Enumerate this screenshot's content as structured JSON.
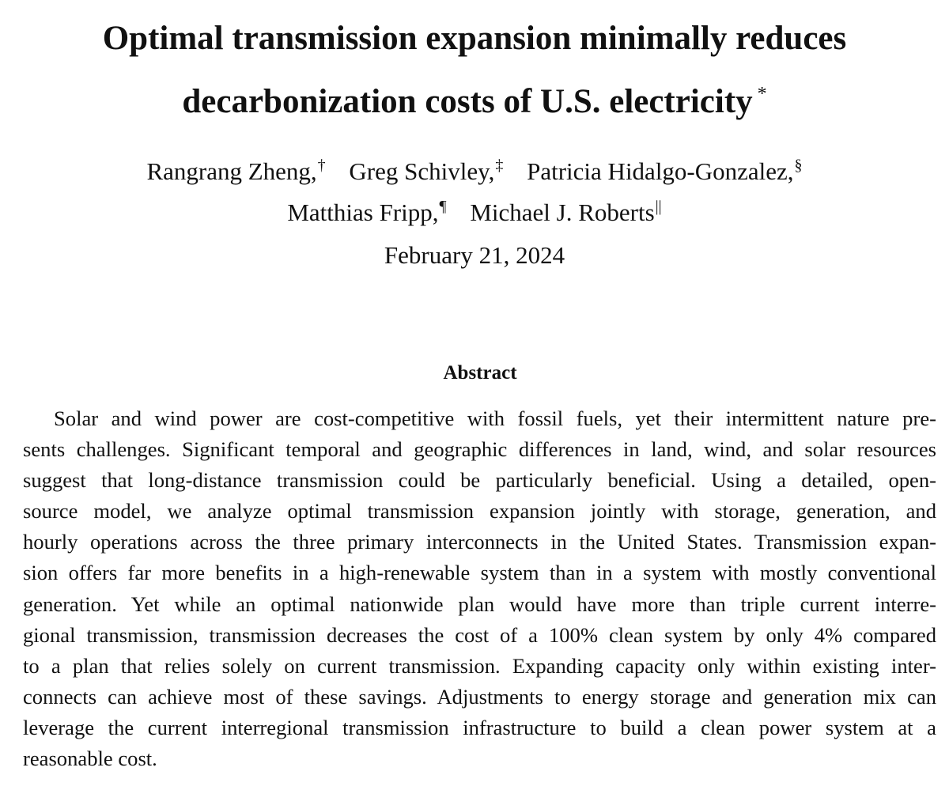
{
  "title": {
    "line1": "Optimal transmission expansion minimally reduces",
    "line2": "decarbonization costs of U.S. electricity",
    "footnote_mark": "*"
  },
  "authors": [
    {
      "name": "Rangrang Zheng,",
      "mark": "†"
    },
    {
      "name": "Greg Schivley,",
      "mark": "‡"
    },
    {
      "name": "Patricia Hidalgo-Gonzalez,",
      "mark": "§"
    },
    {
      "name": "Matthias Fripp,",
      "mark": "¶"
    },
    {
      "name": "Michael J. Roberts",
      "mark": "||"
    }
  ],
  "date": "February 21, 2024",
  "abstract": {
    "heading": "Abstract",
    "lines": [
      "Solar and wind power are cost-competitive with fossil fuels, yet their intermittent nature pre-",
      "sents challenges. Significant temporal and geographic differences in land, wind, and solar resources",
      "suggest that long-distance transmission could be particularly beneficial. Using a detailed, open-",
      "source model, we analyze optimal transmission expansion jointly with storage, generation, and",
      "hourly operations across the three primary interconnects in the United States. Transmission expan-",
      "sion offers far more benefits in a high-renewable system than in a system with mostly conventional",
      "generation. Yet while an optimal nationwide plan would have more than triple current interre-",
      "gional transmission, transmission decreases the cost of a 100% clean system by only 4% compared",
      "to a plan that relies solely on current transmission. Expanding capacity only within existing inter-",
      "connects can achieve most of these savings. Adjustments to energy storage and generation mix can",
      "leverage the current interregional transmission infrastructure to build a clean power system at a",
      "reasonable cost."
    ]
  }
}
